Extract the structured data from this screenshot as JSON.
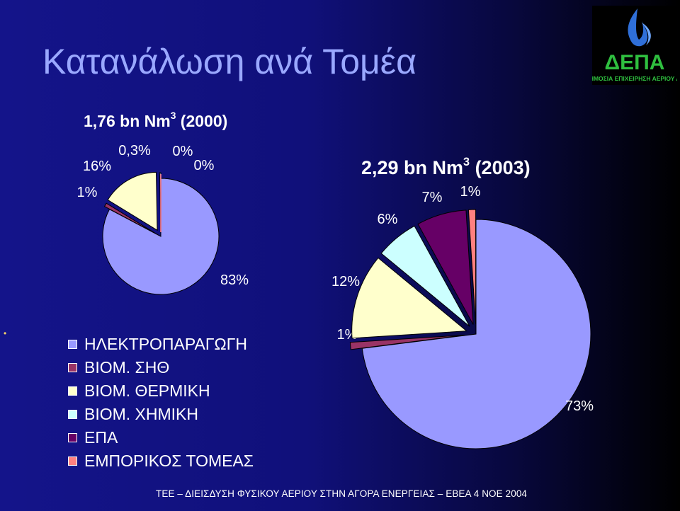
{
  "slide": {
    "title": "Κατανάλωση ανά Τομέα",
    "footer": "ΤΕΕ – ΔΙΕΙΣΔΥΣΗ ΦΥΣΙΚΟΥ ΑΕΡΙΟΥ ΣΤΗΝ ΑΓΟΡΑ ΕΝΕΡΓΕΙΑΣ – ΕΒΕΑ 4 ΝΟΕ 2004",
    "logo": {
      "text": "ΔΕΠΑ",
      "subtext": "ΔΗΜΟΣΙΑ ΕΠΙΧΕΙΡΗΣΗ ΑΕΡΙΟΥ ΑΕ",
      "icon": "flame-logo-icon"
    }
  },
  "colors": {
    "electricity": "#9999ff",
    "chp": "#993366",
    "thermal": "#ffffcc",
    "chemical": "#ccffff",
    "epa": "#660066",
    "commercial": "#ff8080"
  },
  "legend": [
    {
      "label": "ΗΛΕΚΤΡΟΠΑΡΑΓΩΓΗ",
      "color": "#9999ff"
    },
    {
      "label": "ΒΙΟΜ. ΣΗΘ",
      "color": "#993366"
    },
    {
      "label": "ΒΙΟΜ. ΘΕΡΜΙΚΗ",
      "color": "#ffffcc"
    },
    {
      "label": "ΒΙΟΜ. ΧΗΜΙΚΗ",
      "color": "#ccffff"
    },
    {
      "label": "ΕΠΑ",
      "color": "#660066"
    },
    {
      "label": "ΕΜΠΟΡΙΚΟΣ ΤΟΜΕΑΣ",
      "color": "#ff8080"
    }
  ],
  "chart_data": [
    {
      "type": "pie",
      "title": "1,76 bn Nm",
      "title_sup": "3",
      "title_suffix": " (2000)",
      "categories": [
        "ΗΛΕΚΤΡΟΠΑΡΑΓΩΓΗ",
        "ΒΙΟΜ. ΣΗΘ",
        "ΒΙΟΜ. ΘΕΡΜΙΚΗ",
        "ΒΙΟΜ. ΧΗΜΙΚΗ",
        "ΕΠΑ",
        "ΕΜΠΟΡΙΚΟΣ ΤΟΜΕΑΣ"
      ],
      "values": [
        83,
        1,
        16,
        0.3,
        0,
        0
      ],
      "labels": [
        "83%",
        "1%",
        "16%",
        "0,3%",
        "0%",
        "0%"
      ]
    },
    {
      "type": "pie",
      "title": "2,29 bn Nm",
      "title_sup": "3",
      "title_suffix": " (2003)",
      "categories": [
        "ΗΛΕΚΤΡΟΠΑΡΑΓΩΓΗ",
        "ΒΙΟΜ. ΣΗΘ",
        "ΒΙΟΜ. ΘΕΡΜΙΚΗ",
        "ΒΙΟΜ. ΧΗΜΙΚΗ",
        "ΕΠΑ",
        "ΕΜΠΟΡΙΚΟΣ ΤΟΜΕΑΣ"
      ],
      "values": [
        73,
        1,
        12,
        6,
        7,
        1
      ],
      "labels": [
        "73%",
        "1%",
        "12%",
        "6%",
        "7%",
        "1%"
      ]
    }
  ]
}
